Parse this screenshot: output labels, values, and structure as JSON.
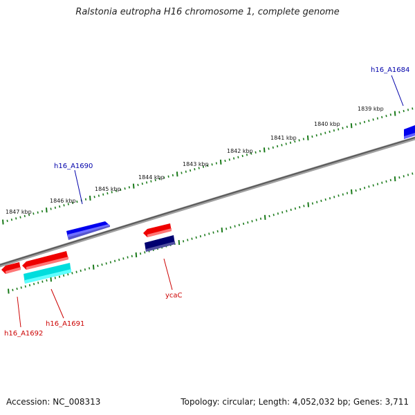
{
  "title": "Ralstonia eutropha H16 chromosome 1, complete genome",
  "footer": {
    "accession": "Accession: NC_008313",
    "summary": "Topology: circular; Length: 4,052,032 bp; Genes: 3,711"
  },
  "colors": {
    "backbone": "#808080",
    "tick": "#1a7a1a",
    "forward_gene": "#0000ee",
    "reverse_gene": "#ee0000",
    "cds_reverse": "#00dddd",
    "cds_forward": "#000070",
    "forward_label": "#0000aa",
    "reverse_label": "#cc0000"
  },
  "ticks": [
    {
      "label": "1839 kbp"
    },
    {
      "label": "1840 kbp"
    },
    {
      "label": "1841 kbp"
    },
    {
      "label": "1842 kbp"
    },
    {
      "label": "1843 kbp"
    },
    {
      "label": "1844 kbp"
    },
    {
      "label": "1845 kbp"
    },
    {
      "label": "1846 kbp"
    },
    {
      "label": "1847 kbp"
    }
  ],
  "gene_labels": [
    {
      "name": "h16_A1684",
      "strand": "forward"
    },
    {
      "name": "h16_A1690",
      "strand": "forward"
    },
    {
      "name": "ycaC",
      "strand": "reverse"
    },
    {
      "name": "h16_A1691",
      "strand": "reverse"
    },
    {
      "name": "h16_A1692",
      "strand": "reverse"
    }
  ]
}
